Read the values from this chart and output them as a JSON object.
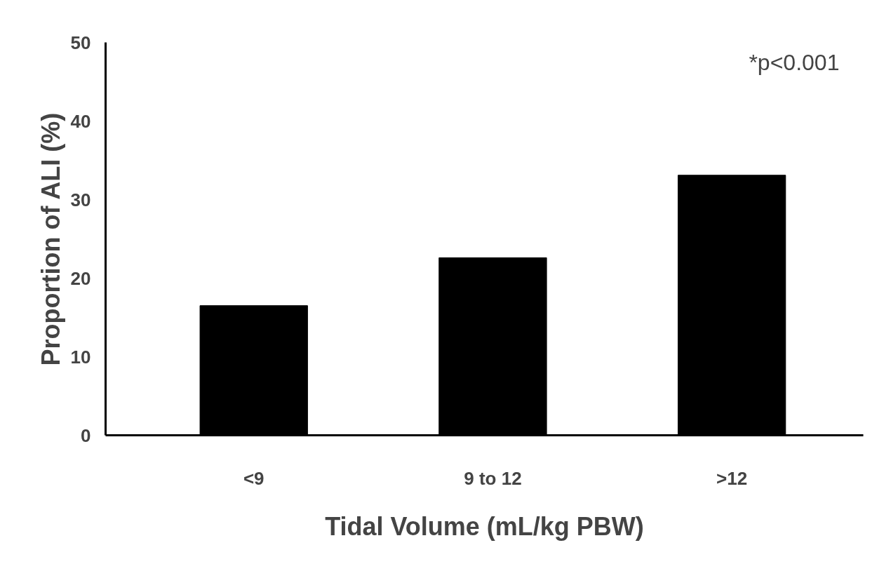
{
  "chart_data": {
    "type": "bar",
    "xlabel": "Tidal Volume (mL/kg PBW)",
    "ylabel": "Proportion of ALI (%)",
    "categories": [
      "<9",
      "9 to 12",
      ">12"
    ],
    "values": [
      16.5,
      22.6,
      33.1
    ],
    "color": "#000000",
    "ylim": [
      0,
      50
    ],
    "yticks": [
      0,
      10,
      20,
      30,
      40,
      50
    ],
    "grid": false,
    "annotations": [
      "*p<0.001"
    ]
  }
}
